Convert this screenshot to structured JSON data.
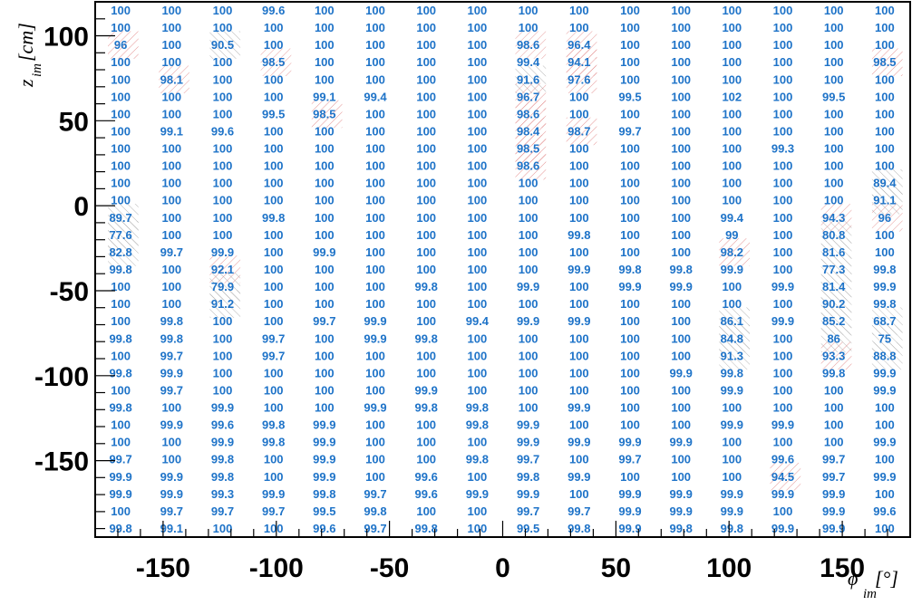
{
  "chart_data": {
    "type": "heatmap",
    "xlabel": "ϕ",
    "xlabel_sub": "im",
    "xlabel_unit": "[°]",
    "ylabel": "z",
    "ylabel_sub": "im",
    "ylabel_unit": "[cm]",
    "xlim": [
      -180,
      180
    ],
    "ylim": [
      -195,
      120
    ],
    "x_ticks": [
      -150,
      -100,
      -50,
      0,
      50,
      100,
      150
    ],
    "y_ticks": [
      -150,
      -100,
      -50,
      0,
      50,
      100
    ],
    "x_tick_labels": [
      "-150",
      "-100",
      "-50",
      "0",
      "50",
      "100",
      "150"
    ],
    "y_tick_labels": [
      "-150",
      "-100",
      "-50",
      "0",
      "50",
      "100"
    ],
    "grid": false,
    "cell_text_color": "#1e73c8",
    "low_efficiency_hatch_color": "#e08080",
    "columns": 16,
    "rows_top_to_bottom": [
      [
        "100",
        "100",
        "100",
        "99.6",
        "100",
        "100",
        "100",
        "100",
        "100",
        "100",
        "100",
        "100",
        "100",
        "100",
        "100",
        "100"
      ],
      [
        "100",
        "100",
        "100",
        "100",
        "100",
        "100",
        "100",
        "100",
        "100",
        "100",
        "100",
        "100",
        "100",
        "100",
        "100",
        "100"
      ],
      [
        "96",
        "100",
        "90.5",
        "100",
        "100",
        "100",
        "100",
        "100",
        "98.6",
        "96.4",
        "100",
        "100",
        "100",
        "100",
        "100",
        "100"
      ],
      [
        "100",
        "100",
        "100",
        "98.5",
        "100",
        "100",
        "100",
        "100",
        "99.4",
        "94.1",
        "100",
        "100",
        "100",
        "100",
        "100",
        "98.5"
      ],
      [
        "100",
        "98.1",
        "100",
        "100",
        "100",
        "100",
        "100",
        "100",
        "91.6",
        "97.6",
        "100",
        "100",
        "100",
        "100",
        "100",
        "100"
      ],
      [
        "100",
        "100",
        "100",
        "100",
        "99.1",
        "99.4",
        "100",
        "100",
        "96.7",
        "100",
        "99.5",
        "100",
        "102",
        "100",
        "99.5",
        "100"
      ],
      [
        "100",
        "100",
        "100",
        "99.5",
        "98.5",
        "100",
        "100",
        "100",
        "98.6",
        "100",
        "100",
        "100",
        "100",
        "100",
        "100",
        "100"
      ],
      [
        "100",
        "99.1",
        "99.6",
        "100",
        "100",
        "100",
        "100",
        "100",
        "98.4",
        "98.7",
        "99.7",
        "100",
        "100",
        "100",
        "100",
        "100"
      ],
      [
        "100",
        "100",
        "100",
        "100",
        "100",
        "100",
        "100",
        "100",
        "98.5",
        "100",
        "100",
        "100",
        "100",
        "99.3",
        "100",
        "100"
      ],
      [
        "100",
        "100",
        "100",
        "100",
        "100",
        "100",
        "100",
        "100",
        "98.6",
        "100",
        "100",
        "100",
        "100",
        "100",
        "100",
        "100"
      ],
      [
        "100",
        "100",
        "100",
        "100",
        "100",
        "100",
        "100",
        "100",
        "100",
        "100",
        "100",
        "100",
        "100",
        "100",
        "100",
        "89.4"
      ],
      [
        "100",
        "100",
        "100",
        "100",
        "100",
        "100",
        "100",
        "100",
        "100",
        "100",
        "100",
        "100",
        "100",
        "100",
        "100",
        "91.1"
      ],
      [
        "89.7",
        "100",
        "100",
        "99.8",
        "100",
        "100",
        "100",
        "100",
        "100",
        "100",
        "100",
        "100",
        "99.4",
        "100",
        "94.3",
        "96"
      ],
      [
        "77.6",
        "100",
        "100",
        "100",
        "100",
        "100",
        "100",
        "100",
        "100",
        "99.8",
        "100",
        "100",
        "99",
        "100",
        "80.8",
        "100"
      ],
      [
        "82.8",
        "99.7",
        "99.9",
        "100",
        "99.9",
        "100",
        "100",
        "100",
        "100",
        "100",
        "100",
        "100",
        "98.2",
        "100",
        "81.6",
        "100"
      ],
      [
        "99.8",
        "100",
        "92.1",
        "100",
        "100",
        "100",
        "100",
        "100",
        "100",
        "99.9",
        "99.8",
        "99.8",
        "99.9",
        "100",
        "77.3",
        "99.8"
      ],
      [
        "100",
        "100",
        "79.9",
        "100",
        "100",
        "100",
        "99.8",
        "100",
        "99.9",
        "100",
        "99.9",
        "99.9",
        "100",
        "99.9",
        "81.4",
        "99.9"
      ],
      [
        "100",
        "100",
        "91.2",
        "100",
        "100",
        "100",
        "100",
        "100",
        "100",
        "100",
        "100",
        "100",
        "100",
        "100",
        "90.2",
        "99.8"
      ],
      [
        "100",
        "99.8",
        "100",
        "100",
        "99.7",
        "99.9",
        "100",
        "99.4",
        "99.9",
        "99.9",
        "100",
        "100",
        "86.1",
        "99.9",
        "85.2",
        "68.7"
      ],
      [
        "99.8",
        "99.8",
        "100",
        "99.7",
        "100",
        "99.9",
        "99.8",
        "100",
        "100",
        "100",
        "100",
        "100",
        "84.8",
        "100",
        "86",
        "75"
      ],
      [
        "100",
        "99.7",
        "100",
        "99.7",
        "100",
        "100",
        "100",
        "100",
        "100",
        "100",
        "100",
        "100",
        "91.3",
        "100",
        "93.3",
        "88.8"
      ],
      [
        "99.8",
        "99.9",
        "100",
        "100",
        "100",
        "100",
        "100",
        "100",
        "100",
        "100",
        "100",
        "99.9",
        "99.8",
        "100",
        "99.8",
        "99.9"
      ],
      [
        "100",
        "99.7",
        "100",
        "100",
        "100",
        "100",
        "99.9",
        "100",
        "100",
        "100",
        "100",
        "100",
        "99.9",
        "100",
        "100",
        "99.9"
      ],
      [
        "99.8",
        "100",
        "99.9",
        "100",
        "100",
        "99.9",
        "99.8",
        "99.8",
        "100",
        "99.9",
        "100",
        "100",
        "100",
        "100",
        "100",
        "100"
      ],
      [
        "100",
        "99.9",
        "99.6",
        "99.8",
        "99.9",
        "100",
        "100",
        "99.8",
        "99.9",
        "100",
        "100",
        "100",
        "99.9",
        "99.9",
        "100",
        "100"
      ],
      [
        "100",
        "100",
        "99.9",
        "99.8",
        "99.9",
        "100",
        "100",
        "100",
        "99.9",
        "99.9",
        "99.9",
        "99.9",
        "100",
        "100",
        "100",
        "99.9"
      ],
      [
        "99.7",
        "100",
        "99.8",
        "100",
        "99.9",
        "100",
        "100",
        "99.8",
        "99.7",
        "100",
        "99.7",
        "100",
        "100",
        "99.6",
        "99.7",
        "100"
      ],
      [
        "99.9",
        "99.9",
        "99.8",
        "100",
        "99.9",
        "100",
        "99.6",
        "100",
        "99.8",
        "99.9",
        "100",
        "100",
        "100",
        "94.5",
        "99.7",
        "99.9"
      ],
      [
        "99.9",
        "99.9",
        "99.3",
        "99.9",
        "99.8",
        "99.7",
        "99.6",
        "99.9",
        "99.9",
        "100",
        "99.9",
        "99.9",
        "99.9",
        "99.9",
        "99.9",
        "100"
      ],
      [
        "100",
        "99.7",
        "99.7",
        "99.7",
        "99.5",
        "99.8",
        "100",
        "100",
        "99.7",
        "99.7",
        "99.9",
        "99.9",
        "99.9",
        "100",
        "99.9",
        "99.6"
      ],
      [
        "99.8",
        "99.1",
        "100",
        "100",
        "99.6",
        "99.7",
        "99.8",
        "100",
        "99.5",
        "99.8",
        "99.9",
        "99.8",
        "99.8",
        "99.9",
        "99.9",
        "100"
      ]
    ]
  }
}
